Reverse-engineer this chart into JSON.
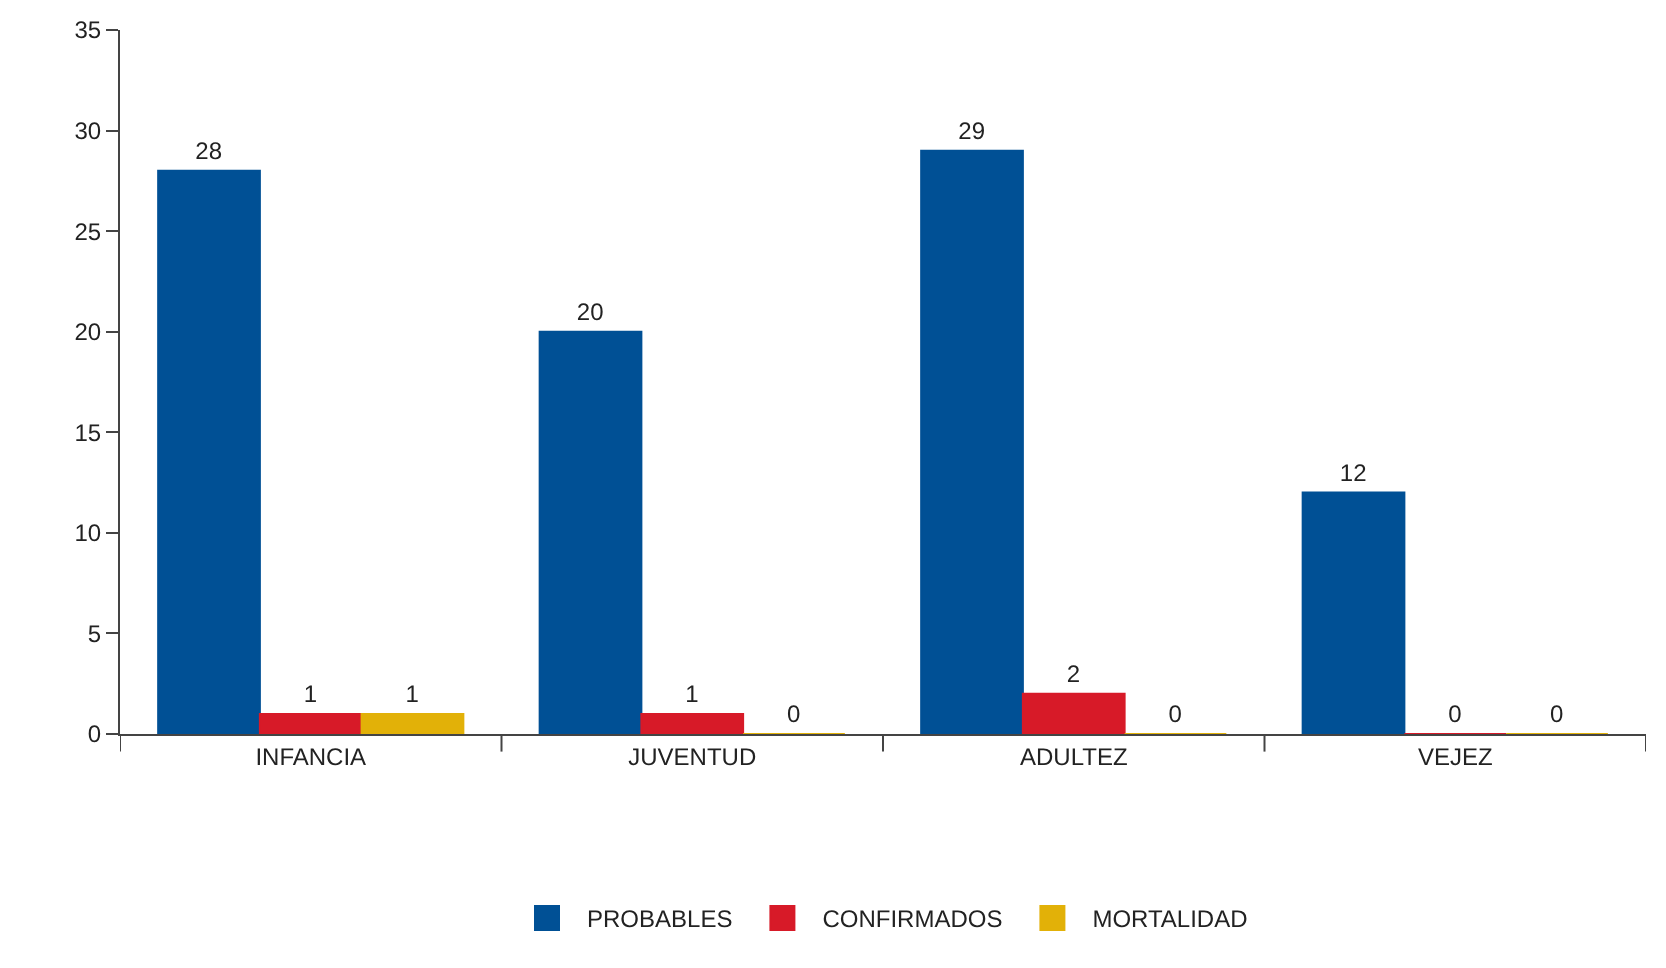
{
  "chart_data": {
    "type": "bar",
    "categories": [
      "INFANCIA",
      "JUVENTUD",
      "ADULTEZ",
      "VEJEZ"
    ],
    "series": [
      {
        "name": "PROBABLES",
        "color": "#005095",
        "values": [
          28,
          20,
          29,
          12
        ]
      },
      {
        "name": "CONFIRMADOS",
        "color": "#d71a28",
        "values": [
          1,
          1,
          2,
          0
        ]
      },
      {
        "name": "MORTALIDAD",
        "color": "#e2b108",
        "values": [
          1,
          0,
          0,
          0
        ]
      }
    ],
    "ylim": [
      0,
      35
    ],
    "yticks": [
      0,
      5,
      10,
      15,
      20,
      25,
      30,
      35
    ],
    "grid": false,
    "legend": "bottom",
    "data_labels": true
  }
}
